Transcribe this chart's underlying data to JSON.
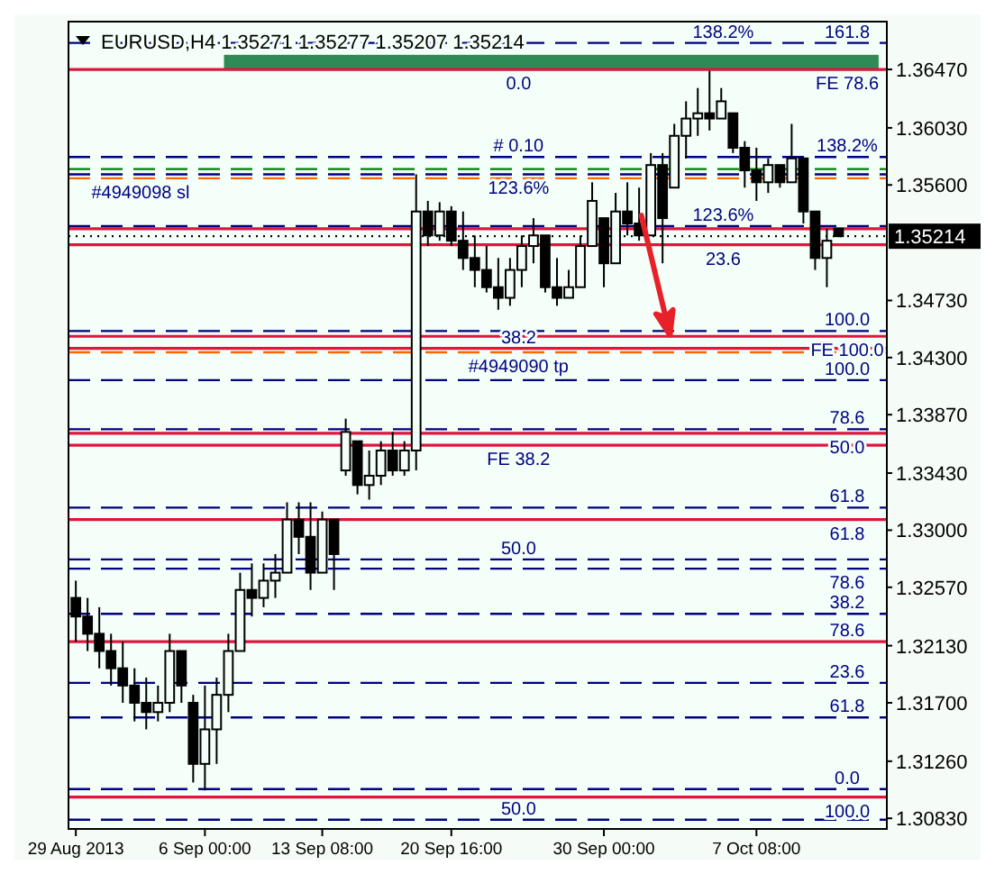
{
  "chart_data": {
    "type": "candlestick",
    "title": "EURUSD,H4 1.35271 1.35277 1.35207 1.35214",
    "categories": [
      "29 Aug 2013",
      null,
      null,
      null,
      null,
      null,
      null,
      null,
      null,
      null,
      null,
      "6 Sep 00:00",
      null,
      null,
      null,
      null,
      null,
      null,
      null,
      null,
      null,
      "13 Sep 08:00",
      null,
      null,
      null,
      null,
      null,
      null,
      null,
      null,
      null,
      null,
      "20 Sep 16:00",
      null,
      null,
      null,
      null,
      null,
      null,
      null,
      null,
      null,
      null,
      null,
      null,
      "30 Sep 00:00",
      null,
      null,
      null,
      null,
      null,
      null,
      null,
      null,
      null,
      null,
      null,
      null,
      "7 Oct 08:00",
      null,
      null,
      null,
      null,
      null,
      null,
      null
    ],
    "ohlc": [
      [
        1.3249,
        1.3262,
        1.3216,
        1.3235
      ],
      [
        1.3235,
        1.3249,
        1.3209,
        1.3222
      ],
      [
        1.3222,
        1.3242,
        1.3196,
        1.3209
      ],
      [
        1.3209,
        1.3222,
        1.3183,
        1.3196
      ],
      [
        1.3196,
        1.3216,
        1.317,
        1.3183
      ],
      [
        1.3183,
        1.3196,
        1.3156,
        1.317
      ],
      [
        1.317,
        1.3189,
        1.315,
        1.3163
      ],
      [
        1.3163,
        1.3183,
        1.3156,
        1.317
      ],
      [
        1.317,
        1.3222,
        1.3163,
        1.3209
      ],
      [
        1.3209,
        1.3209,
        1.317,
        1.3183
      ],
      [
        1.317,
        1.3176,
        1.311,
        1.3124
      ],
      [
        1.3124,
        1.3183,
        1.3104,
        1.315
      ],
      [
        1.315,
        1.3189,
        1.3124,
        1.3176
      ],
      [
        1.3176,
        1.3222,
        1.3163,
        1.3209
      ],
      [
        1.3209,
        1.3268,
        1.3209,
        1.3255
      ],
      [
        1.3255,
        1.3275,
        1.3235,
        1.3249
      ],
      [
        1.3249,
        1.3275,
        1.3242,
        1.3262
      ],
      [
        1.3262,
        1.3282,
        1.3249,
        1.3268
      ],
      [
        1.3268,
        1.3321,
        1.3268,
        1.3308
      ],
      [
        1.3308,
        1.3321,
        1.3282,
        1.3295
      ],
      [
        1.3295,
        1.3321,
        1.3255,
        1.3268
      ],
      [
        1.3268,
        1.3314,
        1.3268,
        1.3308
      ],
      [
        1.3308,
        1.3308,
        1.3255,
        1.3282
      ],
      [
        1.3345,
        1.3384,
        1.3341,
        1.3374
      ],
      [
        1.3367,
        1.3367,
        1.3327,
        1.3334
      ],
      [
        1.3334,
        1.336,
        1.3323,
        1.3341
      ],
      [
        1.3341,
        1.3367,
        1.3334,
        1.336
      ],
      [
        1.336,
        1.3374,
        1.3341,
        1.3345
      ],
      [
        1.3345,
        1.3367,
        1.3341,
        1.336
      ],
      [
        1.336,
        1.3568,
        1.3345,
        1.354
      ],
      [
        1.354,
        1.3548,
        1.3514,
        1.3522
      ],
      [
        1.3522,
        1.3547,
        1.3518,
        1.354
      ],
      [
        1.354,
        1.3544,
        1.3514,
        1.3518
      ],
      [
        1.3518,
        1.354,
        1.3496,
        1.3505
      ],
      [
        1.3505,
        1.3522,
        1.3483,
        1.3496
      ],
      [
        1.3496,
        1.3514,
        1.3479,
        1.3483
      ],
      [
        1.3483,
        1.3505,
        1.3466,
        1.3475
      ],
      [
        1.3475,
        1.3505,
        1.3469,
        1.3496
      ],
      [
        1.3496,
        1.3522,
        1.3483,
        1.3514
      ],
      [
        1.3514,
        1.3535,
        1.3501,
        1.3522
      ],
      [
        1.3522,
        1.3522,
        1.3479,
        1.3483
      ],
      [
        1.3483,
        1.3505,
        1.3469,
        1.3475
      ],
      [
        1.3475,
        1.3496,
        1.3475,
        1.3483
      ],
      [
        1.3483,
        1.3522,
        1.3483,
        1.3514
      ],
      [
        1.3514,
        1.3562,
        1.3514,
        1.3548
      ],
      [
        1.3535,
        1.3535,
        1.3483,
        1.3501
      ],
      [
        1.3501,
        1.3554,
        1.3501,
        1.354
      ],
      [
        1.354,
        1.3562,
        1.3522,
        1.3531
      ],
      [
        1.3531,
        1.3558,
        1.3518,
        1.3522
      ],
      [
        1.3522,
        1.3584,
        1.3522,
        1.3575
      ],
      [
        1.3575,
        1.3584,
        1.3501,
        1.3535
      ],
      [
        1.3558,
        1.3606,
        1.3558,
        1.3597
      ],
      [
        1.3597,
        1.3623,
        1.358,
        1.361
      ],
      [
        1.361,
        1.3633,
        1.3597,
        1.3614
      ],
      [
        1.3614,
        1.3646,
        1.3601,
        1.361
      ],
      [
        1.361,
        1.3633,
        1.361,
        1.3623
      ],
      [
        1.3614,
        1.3614,
        1.3584,
        1.3588
      ],
      [
        1.3588,
        1.3593,
        1.3558,
        1.3571
      ],
      [
        1.3571,
        1.3588,
        1.3548,
        1.3562
      ],
      [
        1.3562,
        1.358,
        1.3554,
        1.3575
      ],
      [
        1.3575,
        1.3575,
        1.3558,
        1.3562
      ],
      [
        1.3562,
        1.3606,
        1.3562,
        1.358
      ],
      [
        1.358,
        1.358,
        1.3531,
        1.354
      ],
      [
        1.354,
        1.354,
        1.3496,
        1.3505
      ],
      [
        1.3505,
        1.3527,
        1.3483,
        1.3518
      ],
      [
        1.35271,
        1.35277,
        1.35207,
        1.35214
      ]
    ],
    "ylim": [
      1.3075,
      1.3683
    ],
    "yticks": [
      {
        "value": 1.3647,
        "label": "1.36470"
      },
      {
        "value": 1.3603,
        "label": "1.36030"
      },
      {
        "value": 1.356,
        "label": "1.35600"
      },
      {
        "value": 1.3473,
        "label": "1.34730"
      },
      {
        "value": 1.343,
        "label": "1.34300"
      },
      {
        "value": 1.3387,
        "label": "1.33870"
      },
      {
        "value": 1.3343,
        "label": "1.33430"
      },
      {
        "value": 1.33,
        "label": "1.33000"
      },
      {
        "value": 1.3257,
        "label": "1.32570"
      },
      {
        "value": 1.3213,
        "label": "1.32130"
      },
      {
        "value": 1.317,
        "label": "1.31700"
      },
      {
        "value": 1.3126,
        "label": "1.31260"
      },
      {
        "value": 1.3083,
        "label": "1.30830"
      }
    ],
    "bands": [
      {
        "axis": "y",
        "from": 1.3647,
        "to": 1.3658,
        "color": "#2e8b57"
      }
    ],
    "ref_lines": [
      {
        "axis": "y",
        "value": 1.3667,
        "color": "#000080",
        "line_style": "dashed"
      },
      {
        "axis": "y",
        "value": 1.3647,
        "color": "#e0143c",
        "line_style": "solid"
      },
      {
        "axis": "y",
        "value": 1.3581,
        "color": "#000080",
        "line_style": "dashed"
      },
      {
        "axis": "y",
        "value": 1.3572,
        "color": "#008000",
        "line_style": "dashed"
      },
      {
        "axis": "y",
        "value": 1.3568,
        "color": "#000080",
        "line_style": "dashed"
      },
      {
        "axis": "y",
        "value": 1.3565,
        "color": "#ff6600",
        "line_style": "dashed"
      },
      {
        "axis": "y",
        "value": 1.3529,
        "color": "#000080",
        "line_style": "dashed"
      },
      {
        "axis": "y",
        "value": 1.3527,
        "color": "#e0143c",
        "line_style": "solid"
      },
      {
        "axis": "y",
        "value": 1.35214,
        "label": "1.35214",
        "color": "#000000",
        "line_style": "dotted"
      },
      {
        "axis": "y",
        "value": 1.3515,
        "color": "#e0143c",
        "line_style": "solid"
      },
      {
        "axis": "y",
        "value": 1.345,
        "color": "#000080",
        "line_style": "dashed"
      },
      {
        "axis": "y",
        "value": 1.3446,
        "color": "#e0143c",
        "line_style": "solid"
      },
      {
        "axis": "y",
        "value": 1.3437,
        "color": "#e0143c",
        "line_style": "solid"
      },
      {
        "axis": "y",
        "value": 1.3434,
        "color": "#ff6600",
        "line_style": "dashed"
      },
      {
        "axis": "y",
        "value": 1.3413,
        "color": "#000080",
        "line_style": "dashed"
      },
      {
        "axis": "y",
        "value": 1.3376,
        "color": "#000080",
        "line_style": "dashed"
      },
      {
        "axis": "y",
        "value": 1.3373,
        "color": "#e0143c",
        "line_style": "solid"
      },
      {
        "axis": "y",
        "value": 1.3364,
        "color": "#e0143c",
        "line_style": "solid"
      },
      {
        "axis": "y",
        "value": 1.3317,
        "color": "#000080",
        "line_style": "dashed"
      },
      {
        "axis": "y",
        "value": 1.3308,
        "color": "#e0143c",
        "line_style": "solid"
      },
      {
        "axis": "y",
        "value": 1.3278,
        "color": "#000080",
        "line_style": "dashed"
      },
      {
        "axis": "y",
        "value": 1.3271,
        "color": "#000080",
        "line_style": "dashed"
      },
      {
        "axis": "y",
        "value": 1.3237,
        "color": "#000080",
        "line_style": "dashed"
      },
      {
        "axis": "y",
        "value": 1.3216,
        "color": "#e0143c",
        "line_style": "solid"
      },
      {
        "axis": "y",
        "value": 1.3185,
        "color": "#000080",
        "line_style": "dashed"
      },
      {
        "axis": "y",
        "value": 1.3159,
        "color": "#000080",
        "line_style": "dashed"
      },
      {
        "axis": "y",
        "value": 1.3105,
        "color": "#000080",
        "line_style": "dashed"
      },
      {
        "axis": "y",
        "value": 1.3099,
        "color": "#e0143c",
        "line_style": "solid"
      },
      {
        "axis": "y",
        "value": 1.3082,
        "color": "#000080",
        "line_style": "dashed"
      }
    ],
    "annotations": [
      {
        "text": "161.8",
        "y": 1.3667
      },
      {
        "text": "138.2%",
        "y": 1.3667
      },
      {
        "text": "FE 78.6",
        "y": 1.3647
      },
      {
        "text": "0.0",
        "y": 1.3647
      },
      {
        "text": "138.2%",
        "y": 1.3581
      },
      {
        "text": "# 0.10",
        "y": 1.3581
      },
      {
        "text": "123.6%",
        "y": 1.3568
      },
      {
        "text": "#4949098 sl",
        "y": 1.3565
      },
      {
        "text": "123.6%",
        "y": 1.3529
      },
      {
        "text": "23.6",
        "y": 1.3515
      },
      {
        "text": "100.0",
        "y": 1.345
      },
      {
        "text": "FE 100.0",
        "y": 1.3446
      },
      {
        "text": "38.2",
        "y": 1.3437
      },
      {
        "text": "#4949090 tp",
        "y": 1.3434
      },
      {
        "text": "100.0",
        "y": 1.3413
      },
      {
        "text": "78.6",
        "y": 1.3376
      },
      {
        "text": "50.0",
        "y": 1.3373
      },
      {
        "text": "FE 38.2",
        "y": 1.3364
      },
      {
        "text": "61.8",
        "y": 1.3317
      },
      {
        "text": "61.8",
        "y": 1.3308
      },
      {
        "text": "50.0",
        "y": 1.3278
      },
      {
        "text": "78.6",
        "y": 1.3271
      },
      {
        "text": "38.2",
        "y": 1.3237
      },
      {
        "text": "78.6",
        "y": 1.3216
      },
      {
        "text": "23.6",
        "y": 1.3185
      },
      {
        "text": "61.8",
        "y": 1.3159
      },
      {
        "text": "0.0",
        "y": 1.3105
      },
      {
        "text": "100.0",
        "y": 1.3099
      },
      {
        "text": "50.0",
        "y": 1.3082
      }
    ]
  }
}
